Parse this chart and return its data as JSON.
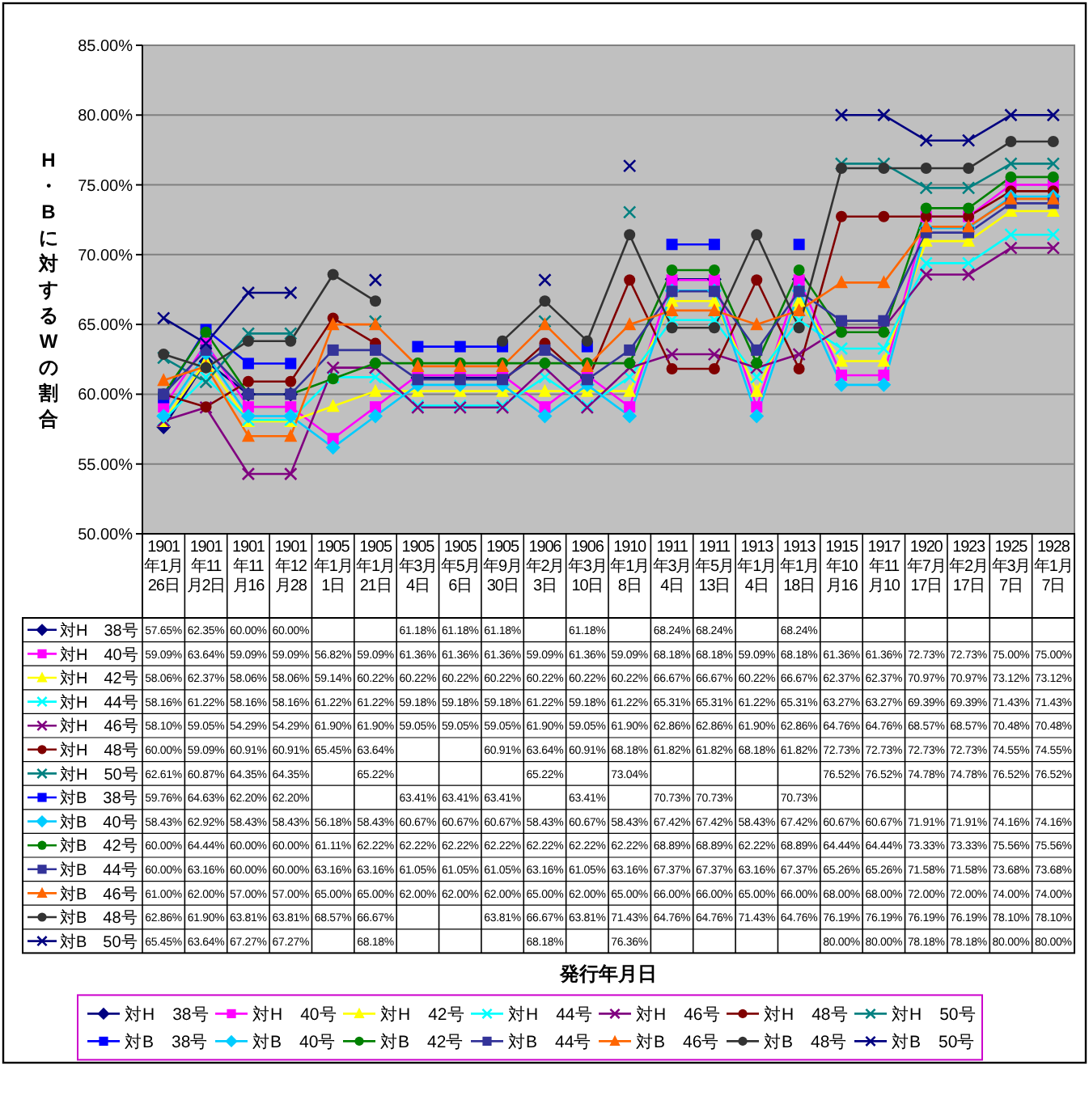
{
  "chart_data": {
    "type": "line",
    "annotations": [
      "発行年月日"
    ],
    "ylabel": "H・Bに対するWの割合",
    "categories": [
      "1901年1月26日",
      "1901年11月2日",
      "1901年11月16",
      "1901年12月28",
      "1905年1月1日",
      "1905年1月21日",
      "1905年3月4日",
      "1905年5月6日",
      "1905年9月30日",
      "1906年2月3日",
      "1906年3月10日",
      "1910年1月8日",
      "1911年3月4日",
      "1911年5月13日",
      "1913年1月4日",
      "1913年1月18日",
      "1915年10月16",
      "1917年11月10",
      "1920年7月17日",
      "1923年2月17日",
      "1925年3月7日",
      "1928年1月7日"
    ],
    "ylim": [
      50,
      85
    ],
    "yticks": [
      {
        "value": 50,
        "label": "50.00%"
      },
      {
        "value": 55,
        "label": "55.00%"
      },
      {
        "value": 60,
        "label": "60.00%"
      },
      {
        "value": 65,
        "label": "65.00%"
      },
      {
        "value": 70,
        "label": "70.00%"
      },
      {
        "value": 75,
        "label": "75.00%"
      },
      {
        "value": 80,
        "label": "80.00%"
      },
      {
        "value": 85,
        "label": "85.00%"
      }
    ],
    "grid": "y",
    "legend": "bottom",
    "line_style": "solid",
    "series": [
      {
        "name": "対H　38号",
        "color": "#000080",
        "marker": "diamond",
        "values": [
          57.65,
          62.35,
          60.0,
          60.0,
          null,
          null,
          61.18,
          61.18,
          61.18,
          null,
          61.18,
          null,
          68.24,
          68.24,
          null,
          68.24,
          null,
          null,
          null,
          null,
          null,
          null
        ],
        "value_labels": [
          "57.65%",
          "62.35%",
          "60.00%",
          "60.00%",
          null,
          null,
          "61.18%",
          "61.18%",
          "61.18%",
          null,
          "61.18%",
          null,
          "68.24%",
          "68.24%",
          null,
          "68.24%",
          null,
          null,
          null,
          null,
          null,
          null
        ]
      },
      {
        "name": "対H　40号",
        "color": "#ff00ff",
        "marker": "square",
        "values": [
          59.09,
          63.64,
          59.09,
          59.09,
          56.82,
          59.09,
          61.36,
          61.36,
          61.36,
          59.09,
          61.36,
          59.09,
          68.18,
          68.18,
          59.09,
          68.18,
          61.36,
          61.36,
          72.73,
          72.73,
          75.0,
          75.0
        ],
        "value_labels": [
          "59.09%",
          "63.64%",
          "59.09%",
          "59.09%",
          "56.82%",
          "59.09%",
          "61.36%",
          "61.36%",
          "61.36%",
          "59.09%",
          "61.36%",
          "59.09%",
          "68.18%",
          "68.18%",
          "59.09%",
          "68.18%",
          "61.36%",
          "61.36%",
          "72.73%",
          "72.73%",
          "75.00%",
          "75.00%"
        ]
      },
      {
        "name": "対H　42号",
        "color": "#ffff00",
        "marker": "triangle",
        "values": [
          58.06,
          62.37,
          58.06,
          58.06,
          59.14,
          60.22,
          60.22,
          60.22,
          60.22,
          60.22,
          60.22,
          60.22,
          66.67,
          66.67,
          60.22,
          66.67,
          62.37,
          62.37,
          70.97,
          70.97,
          73.12,
          73.12
        ],
        "value_labels": [
          "58.06%",
          "62.37%",
          "58.06%",
          "58.06%",
          "59.14%",
          "60.22%",
          "60.22%",
          "60.22%",
          "60.22%",
          "60.22%",
          "60.22%",
          "60.22%",
          "66.67%",
          "66.67%",
          "60.22%",
          "66.67%",
          "62.37%",
          "62.37%",
          "70.97%",
          "70.97%",
          "73.12%",
          "73.12%"
        ]
      },
      {
        "name": "対H　44号",
        "color": "#00ffff",
        "marker": "cross",
        "values": [
          58.16,
          61.22,
          58.16,
          58.16,
          61.22,
          61.22,
          59.18,
          59.18,
          59.18,
          61.22,
          59.18,
          61.22,
          65.31,
          65.31,
          61.22,
          65.31,
          63.27,
          63.27,
          69.39,
          69.39,
          71.43,
          71.43
        ],
        "value_labels": [
          "58.16%",
          "61.22%",
          "58.16%",
          "58.16%",
          "61.22%",
          "61.22%",
          "59.18%",
          "59.18%",
          "59.18%",
          "61.22%",
          "59.18%",
          "61.22%",
          "65.31%",
          "65.31%",
          "61.22%",
          "65.31%",
          "63.27%",
          "63.27%",
          "69.39%",
          "69.39%",
          "71.43%",
          "71.43%"
        ]
      },
      {
        "name": "対H　46号",
        "color": "#800080",
        "marker": "cross",
        "values": [
          58.1,
          59.05,
          54.29,
          54.29,
          61.9,
          61.9,
          59.05,
          59.05,
          59.05,
          61.9,
          59.05,
          61.9,
          62.86,
          62.86,
          61.9,
          62.86,
          64.76,
          64.76,
          68.57,
          68.57,
          70.48,
          70.48
        ],
        "value_labels": [
          "58.10%",
          "59.05%",
          "54.29%",
          "54.29%",
          "61.90%",
          "61.90%",
          "59.05%",
          "59.05%",
          "59.05%",
          "61.90%",
          "59.05%",
          "61.90%",
          "62.86%",
          "62.86%",
          "61.90%",
          "62.86%",
          "64.76%",
          "64.76%",
          "68.57%",
          "68.57%",
          "70.48%",
          "70.48%"
        ]
      },
      {
        "name": "対H　48号",
        "color": "#800000",
        "marker": "circle",
        "values": [
          60.0,
          59.09,
          60.91,
          60.91,
          65.45,
          63.64,
          null,
          null,
          60.91,
          63.64,
          60.91,
          68.18,
          61.82,
          61.82,
          68.18,
          61.82,
          72.73,
          72.73,
          72.73,
          72.73,
          74.55,
          74.55
        ],
        "value_labels": [
          "60.00%",
          "59.09%",
          "60.91%",
          "60.91%",
          "65.45%",
          "63.64%",
          null,
          null,
          "60.91%",
          "63.64%",
          "60.91%",
          "68.18%",
          "61.82%",
          "61.82%",
          "68.18%",
          "61.82%",
          "72.73%",
          "72.73%",
          "72.73%",
          "72.73%",
          "74.55%",
          "74.55%"
        ]
      },
      {
        "name": "対H　50号",
        "color": "#008080",
        "marker": "cross",
        "values": [
          62.61,
          60.87,
          64.35,
          64.35,
          null,
          65.22,
          null,
          null,
          null,
          65.22,
          null,
          73.04,
          null,
          null,
          null,
          null,
          76.52,
          76.52,
          74.78,
          74.78,
          76.52,
          76.52
        ],
        "value_labels": [
          "62.61%",
          "60.87%",
          "64.35%",
          "64.35%",
          null,
          "65.22%",
          null,
          null,
          null,
          "65.22%",
          null,
          "73.04%",
          null,
          null,
          null,
          null,
          "76.52%",
          "76.52%",
          "74.78%",
          "74.78%",
          "76.52%",
          "76.52%"
        ]
      },
      {
        "name": "対B　38号",
        "color": "#0000ff",
        "marker": "square",
        "values": [
          59.76,
          64.63,
          62.2,
          62.2,
          null,
          null,
          63.41,
          63.41,
          63.41,
          null,
          63.41,
          null,
          70.73,
          70.73,
          null,
          70.73,
          null,
          null,
          null,
          null,
          null,
          null
        ],
        "value_labels": [
          "59.76%",
          "64.63%",
          "62.20%",
          "62.20%",
          null,
          null,
          "63.41%",
          "63.41%",
          "63.41%",
          null,
          "63.41%",
          null,
          "70.73%",
          "70.73%",
          null,
          "70.73%",
          null,
          null,
          null,
          null,
          null,
          null
        ]
      },
      {
        "name": "対B　40号",
        "color": "#00ccff",
        "marker": "diamond",
        "values": [
          58.43,
          62.92,
          58.43,
          58.43,
          56.18,
          58.43,
          60.67,
          60.67,
          60.67,
          58.43,
          60.67,
          58.43,
          67.42,
          67.42,
          58.43,
          67.42,
          60.67,
          60.67,
          71.91,
          71.91,
          74.16,
          74.16
        ],
        "value_labels": [
          "58.43%",
          "62.92%",
          "58.43%",
          "58.43%",
          "56.18%",
          "58.43%",
          "60.67%",
          "60.67%",
          "60.67%",
          "58.43%",
          "60.67%",
          "58.43%",
          "67.42%",
          "67.42%",
          "58.43%",
          "67.42%",
          "60.67%",
          "60.67%",
          "71.91%",
          "71.91%",
          "74.16%",
          "74.16%"
        ]
      },
      {
        "name": "対B　42号",
        "color": "#008000",
        "marker": "circle",
        "values": [
          60.0,
          64.44,
          60.0,
          60.0,
          61.11,
          62.22,
          62.22,
          62.22,
          62.22,
          62.22,
          62.22,
          62.22,
          68.89,
          68.89,
          62.22,
          68.89,
          64.44,
          64.44,
          73.33,
          73.33,
          75.56,
          75.56
        ],
        "value_labels": [
          "60.00%",
          "64.44%",
          "60.00%",
          "60.00%",
          "61.11%",
          "62.22%",
          "62.22%",
          "62.22%",
          "62.22%",
          "62.22%",
          "62.22%",
          "62.22%",
          "68.89%",
          "68.89%",
          "62.22%",
          "68.89%",
          "64.44%",
          "64.44%",
          "73.33%",
          "73.33%",
          "75.56%",
          "75.56%"
        ]
      },
      {
        "name": "対B　44号",
        "color": "#333399",
        "marker": "square",
        "values": [
          60.0,
          63.16,
          60.0,
          60.0,
          63.16,
          63.16,
          61.05,
          61.05,
          61.05,
          63.16,
          61.05,
          63.16,
          67.37,
          67.37,
          63.16,
          67.37,
          65.26,
          65.26,
          71.58,
          71.58,
          73.68,
          73.68
        ],
        "value_labels": [
          "60.00%",
          "63.16%",
          "60.00%",
          "60.00%",
          "63.16%",
          "63.16%",
          "61.05%",
          "61.05%",
          "61.05%",
          "63.16%",
          "61.05%",
          "63.16%",
          "67.37%",
          "67.37%",
          "63.16%",
          "67.37%",
          "65.26%",
          "65.26%",
          "71.58%",
          "71.58%",
          "73.68%",
          "73.68%"
        ]
      },
      {
        "name": "対B　46号",
        "color": "#ff6600",
        "marker": "triangle",
        "values": [
          61.0,
          62.0,
          57.0,
          57.0,
          65.0,
          65.0,
          62.0,
          62.0,
          62.0,
          65.0,
          62.0,
          65.0,
          66.0,
          66.0,
          65.0,
          66.0,
          68.0,
          68.0,
          72.0,
          72.0,
          74.0,
          74.0
        ],
        "value_labels": [
          "61.00%",
          "62.00%",
          "57.00%",
          "57.00%",
          "65.00%",
          "65.00%",
          "62.00%",
          "62.00%",
          "62.00%",
          "65.00%",
          "62.00%",
          "65.00%",
          "66.00%",
          "66.00%",
          "65.00%",
          "66.00%",
          "68.00%",
          "68.00%",
          "72.00%",
          "72.00%",
          "74.00%",
          "74.00%"
        ]
      },
      {
        "name": "対B　48号",
        "color": "#333333",
        "marker": "circle",
        "values": [
          62.86,
          61.9,
          63.81,
          63.81,
          68.57,
          66.67,
          null,
          null,
          63.81,
          66.67,
          63.81,
          71.43,
          64.76,
          64.76,
          71.43,
          64.76,
          76.19,
          76.19,
          76.19,
          76.19,
          78.1,
          78.1
        ],
        "value_labels": [
          "62.86%",
          "61.90%",
          "63.81%",
          "63.81%",
          "68.57%",
          "66.67%",
          null,
          null,
          "63.81%",
          "66.67%",
          "63.81%",
          "71.43%",
          "64.76%",
          "64.76%",
          "71.43%",
          "64.76%",
          "76.19%",
          "76.19%",
          "76.19%",
          "76.19%",
          "78.10%",
          "78.10%"
        ]
      },
      {
        "name": "対B　50号",
        "color": "#000080",
        "marker": "cross",
        "values": [
          65.45,
          63.64,
          67.27,
          67.27,
          null,
          68.18,
          null,
          null,
          null,
          68.18,
          null,
          76.36,
          null,
          null,
          null,
          null,
          80.0,
          80.0,
          78.18,
          78.18,
          80.0,
          80.0
        ],
        "value_labels": [
          "65.45%",
          "63.64%",
          "67.27%",
          "67.27%",
          null,
          "68.18%",
          null,
          null,
          null,
          "68.18%",
          null,
          "76.36%",
          null,
          null,
          null,
          null,
          "80.00%",
          "80.00%",
          "78.18%",
          "78.18%",
          "80.00%",
          "80.00%"
        ]
      }
    ]
  }
}
